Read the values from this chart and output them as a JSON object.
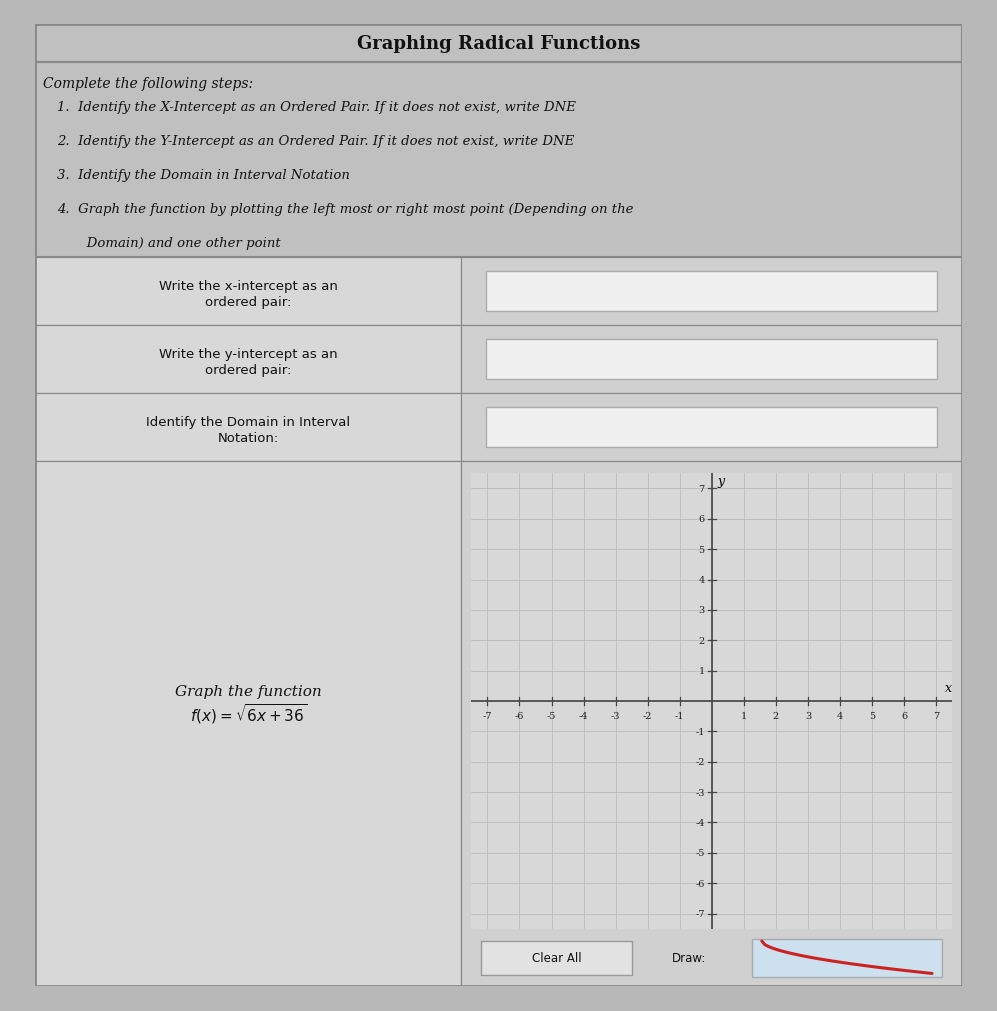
{
  "title": "Graphing Radical Functions",
  "instructions_header": "Complete the following steps:",
  "instr_lines": [
    "1.  Identify the X-Intercept as an Ordered Pair. If it does not exist, write DNE",
    "2.  Identify the Y-Intercept as an Ordered Pair. If it does not exist, write DNE",
    "3.  Identify the Domain in Interval Notation",
    "4.  Graph the function by plotting the left most or right most point (Depending on the",
    "       Domain) and one other point"
  ],
  "row1_label_l1": "Write the x-intercept as an",
  "row1_label_l2": "ordered pair:",
  "row2_label_l1": "Write the y-intercept as an",
  "row2_label_l2": "ordered pair:",
  "row3_label_l1": "Identify the Domain in Interval",
  "row3_label_l2": "Notation:",
  "graph_label_l1": "Graph the function",
  "graph_label_l2": "$f(x) = \\sqrt{6x+36}$",
  "clear_all_text": "Clear All",
  "draw_text": "Draw:",
  "outer_bg": "#c0c0c0",
  "fig_bg": "#b8b8b8",
  "cell_bg_left": "#d8d8d8",
  "cell_bg_right": "#d0d0d0",
  "input_box_bg": "#f0f0f0",
  "grid_bg": "#d8d8d8",
  "grid_minor_color": "#bbbbbb",
  "grid_axis_color": "#444444",
  "border_color": "#888888",
  "title_color": "#111111",
  "draw_icon_bg": "#cce0ee"
}
